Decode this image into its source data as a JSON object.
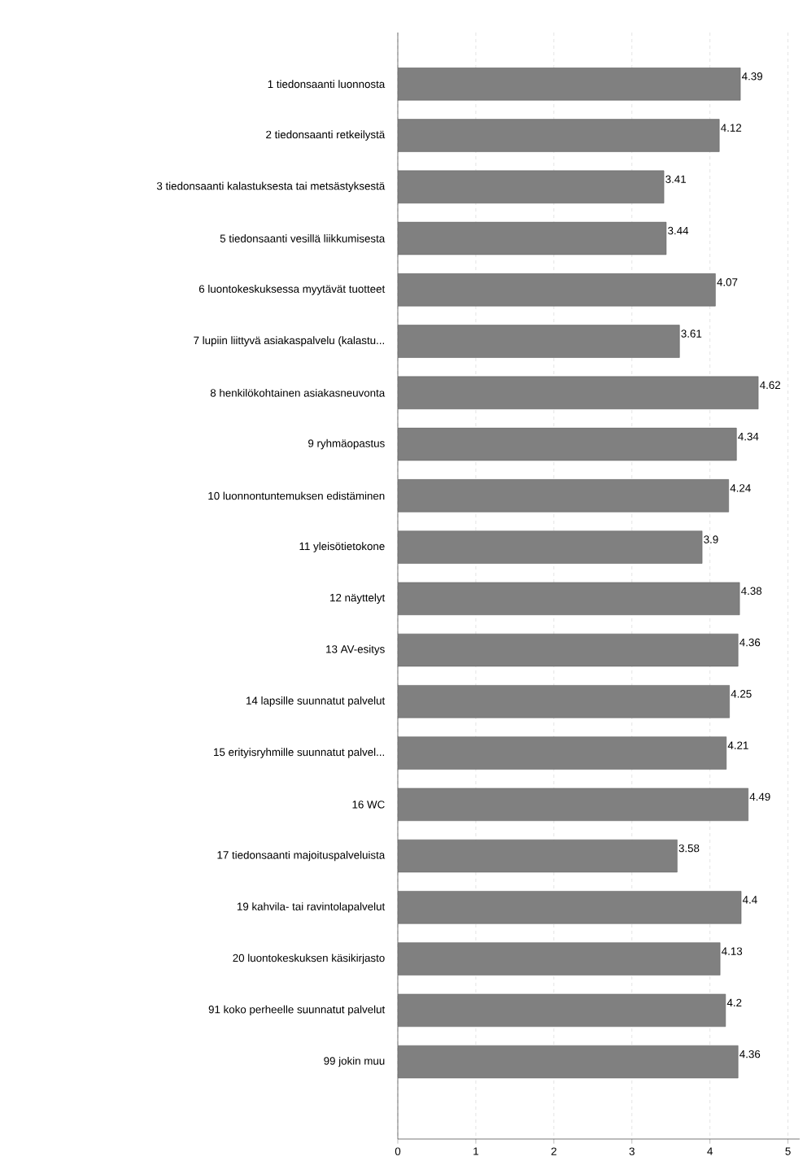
{
  "chart_data": {
    "type": "bar",
    "orientation": "horizontal",
    "categories": [
      "1 tiedonsaanti luonnosta",
      "2 tiedonsaanti retkeilystä",
      "3 tiedonsaanti kalastuksesta tai metsästyksestä",
      "5 tiedonsaanti vesillä liikkumisesta",
      "6 luontokeskuksessa myytävät tuotteet",
      "7 lupiin liittyvä asiakaspalvelu (kalastu...",
      "8 henkilökohtainen asiakasneuvonta",
      "9 ryhmäopastus",
      "10 luonnontuntemuksen edistäminen",
      "11 yleisötietokone",
      "12 näyttelyt",
      "13 AV-esitys",
      "14 lapsille suunnatut palvelut",
      "15 erityisryhmille suunnatut palvel...",
      "16 WC",
      "17 tiedonsaanti majoituspalveluista",
      "19 kahvila- tai ravintolapalvelut",
      "20 luontokeskuksen käsikirjasto",
      "91 koko perheelle suunnatut palvelut",
      "99 jokin muu"
    ],
    "values": [
      4.39,
      4.12,
      3.41,
      3.44,
      4.07,
      3.61,
      4.62,
      4.34,
      4.24,
      3.9,
      4.38,
      4.36,
      4.25,
      4.21,
      4.49,
      3.58,
      4.4,
      4.13,
      4.2,
      4.36
    ],
    "color": "#808080",
    "data_labels": true,
    "grid": "x",
    "xlim": [
      0,
      5.15
    ],
    "xticks": [
      0,
      1,
      2,
      3,
      4,
      5
    ]
  }
}
